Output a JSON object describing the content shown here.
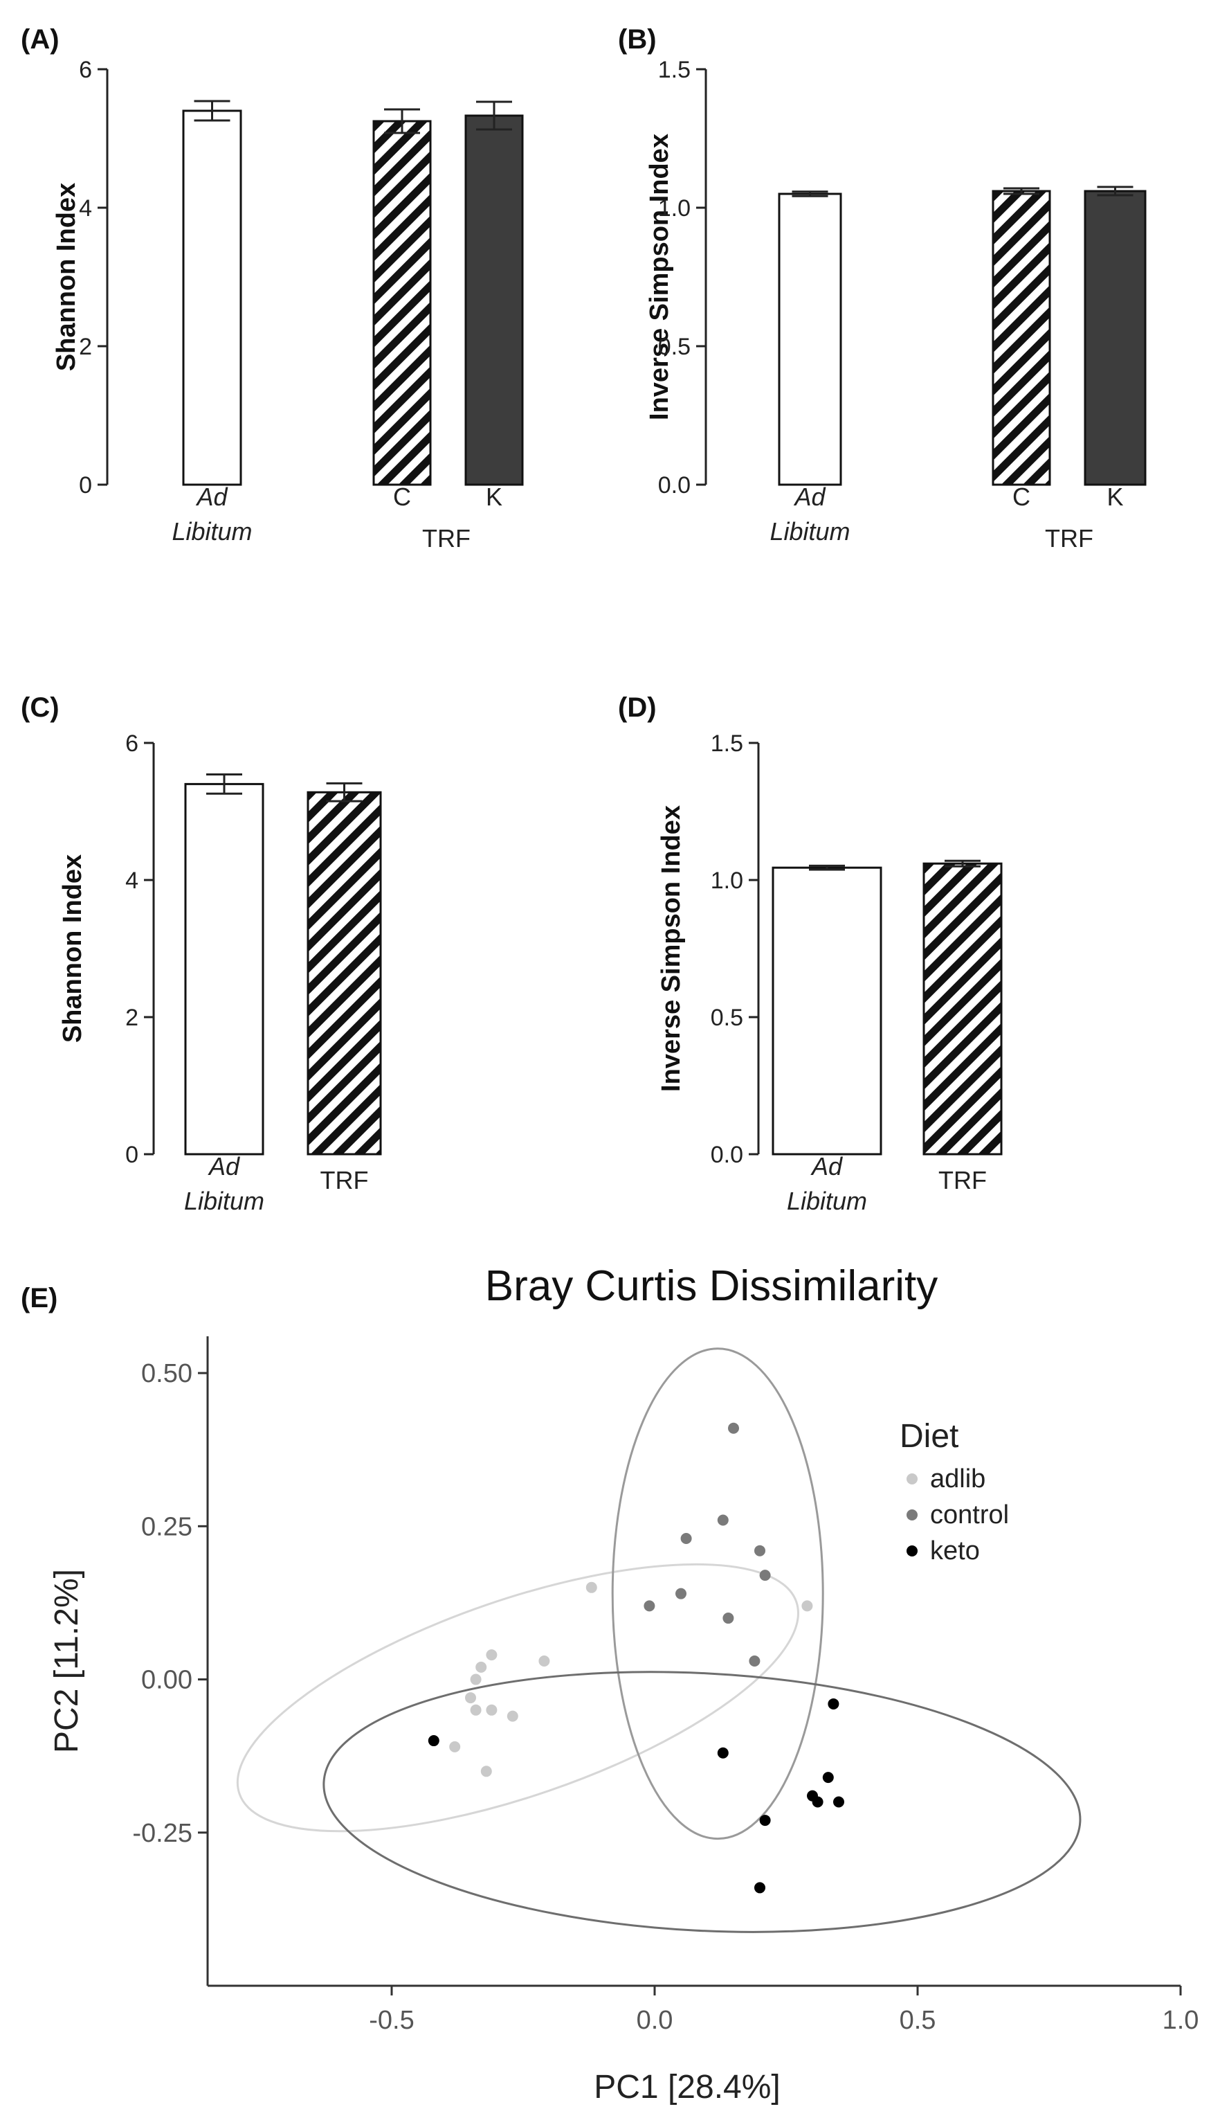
{
  "colors": {
    "adlib": "#c9c9c9",
    "control": "#7a7a7a",
    "keto": "#000000",
    "bar_dark": "#3d3d3d",
    "axis": "#222222"
  },
  "chart_data": [
    {
      "id": "A",
      "panel_label": "(A)",
      "type": "bar",
      "ylabel": "Shannon Index",
      "ylim": [
        0,
        6
      ],
      "yticks": [
        "0",
        "2",
        "4",
        "6"
      ],
      "categories": [
        "Ad Libitum",
        "C",
        "K"
      ],
      "group_label": "TRF",
      "values": [
        5.4,
        5.25,
        5.33
      ],
      "errors": [
        0.14,
        0.17,
        0.2
      ],
      "fills": [
        "white",
        "hatch",
        "dark"
      ]
    },
    {
      "id": "B",
      "panel_label": "(B)",
      "type": "bar",
      "ylabel": "Inverse Simpson Index",
      "ylim": [
        0,
        1.5
      ],
      "yticks": [
        "0.0",
        "0.5",
        "1.0",
        "1.5"
      ],
      "categories": [
        "Ad Libitum",
        "C",
        "K"
      ],
      "group_label": "TRF",
      "values": [
        1.05,
        1.06,
        1.06
      ],
      "errors": [
        0.008,
        0.01,
        0.015
      ],
      "fills": [
        "white",
        "hatch",
        "dark"
      ]
    },
    {
      "id": "C",
      "panel_label": "(C)",
      "type": "bar",
      "ylabel": "Shannon Index",
      "ylim": [
        0,
        6
      ],
      "yticks": [
        "0",
        "2",
        "4",
        "6"
      ],
      "categories": [
        "Ad Libitum",
        "TRF"
      ],
      "values": [
        5.4,
        5.28
      ],
      "errors": [
        0.14,
        0.13
      ],
      "fills": [
        "white",
        "hatch"
      ]
    },
    {
      "id": "D",
      "panel_label": "(D)",
      "type": "bar",
      "ylabel": "Inverse Simpson Index",
      "ylim": [
        0,
        1.5
      ],
      "yticks": [
        "0.0",
        "0.5",
        "1.0",
        "1.5"
      ],
      "categories": [
        "Ad Libitum",
        "TRF"
      ],
      "values": [
        1.045,
        1.06
      ],
      "errors": [
        0.007,
        0.01
      ],
      "fills": [
        "white",
        "hatch"
      ]
    },
    {
      "id": "E",
      "panel_label": "(E)",
      "type": "scatter",
      "title": "Bray Curtis Dissimilarity",
      "xlabel": "PC1 [28.4%]",
      "ylabel": "PC2 [11.2%]",
      "xlim": [
        -0.85,
        1.0
      ],
      "ylim": [
        -0.5,
        0.56
      ],
      "xticks": [
        "-0.5",
        "0.0",
        "0.5",
        "1.0"
      ],
      "yticks": [
        "-0.25",
        "0.00",
        "0.25",
        "0.50"
      ],
      "legend_title": "Diet",
      "series": [
        {
          "name": "adlib",
          "points": [
            [
              -0.12,
              0.15
            ],
            [
              0.29,
              0.12
            ],
            [
              -0.21,
              0.03
            ],
            [
              -0.31,
              0.04
            ],
            [
              -0.33,
              0.02
            ],
            [
              -0.34,
              0.0
            ],
            [
              -0.35,
              -0.03
            ],
            [
              -0.34,
              -0.05
            ],
            [
              -0.31,
              -0.05
            ],
            [
              -0.27,
              -0.06
            ],
            [
              -0.38,
              -0.11
            ],
            [
              -0.32,
              -0.15
            ]
          ],
          "ellipse": {
            "cx": -0.26,
            "cy": -0.03,
            "rx": 0.56,
            "ry": 0.16,
            "angle_deg": 19
          }
        },
        {
          "name": "control",
          "points": [
            [
              0.15,
              0.41
            ],
            [
              0.13,
              0.26
            ],
            [
              0.06,
              0.23
            ],
            [
              0.2,
              0.21
            ],
            [
              0.21,
              0.17
            ],
            [
              0.05,
              0.14
            ],
            [
              -0.01,
              0.12
            ],
            [
              0.14,
              0.1
            ],
            [
              0.19,
              0.03
            ]
          ],
          "ellipse": {
            "cx": 0.12,
            "cy": 0.14,
            "rx": 0.2,
            "ry": 0.4,
            "angle_deg": 0
          }
        },
        {
          "name": "keto",
          "points": [
            [
              -0.42,
              -0.1
            ],
            [
              0.13,
              -0.12
            ],
            [
              0.34,
              -0.04
            ],
            [
              0.33,
              -0.16
            ],
            [
              0.3,
              -0.19
            ],
            [
              0.31,
              -0.2
            ],
            [
              0.35,
              -0.2
            ],
            [
              0.21,
              -0.23
            ],
            [
              0.2,
              -0.34
            ]
          ],
          "ellipse": {
            "cx": 0.09,
            "cy": -0.2,
            "rx": 0.72,
            "ry": 0.21,
            "angle_deg": -3
          }
        }
      ]
    }
  ]
}
